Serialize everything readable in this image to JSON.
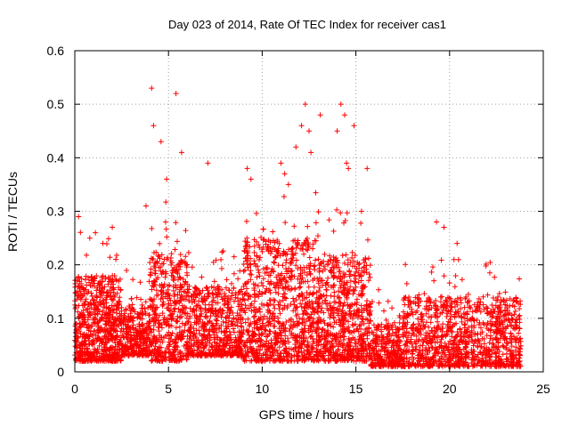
{
  "chart_data": {
    "type": "scatter",
    "title": "Day 023 of 2014, Rate Of TEC Index for receiver cas1",
    "xlabel": "GPS time / hours",
    "ylabel": "ROTI / TECUs",
    "xlim": [
      0,
      25
    ],
    "ylim": [
      0,
      0.6
    ],
    "xticks": [
      "0",
      "5",
      "10",
      "15",
      "20",
      "25"
    ],
    "yticks": [
      "0",
      "0.1",
      "0.2",
      "0.3",
      "0.4",
      "0.5",
      "0.6"
    ],
    "grid": true,
    "marker": "+",
    "series": [
      {
        "name": "cas1",
        "color": "#ff0000",
        "x": [
          0.2,
          0.8,
          1.1,
          1.5,
          2.0,
          3.8,
          4.1,
          4.2,
          4.6,
          4.9,
          5.4,
          5.7,
          7.1,
          9.2,
          9.4,
          11.0,
          11.2,
          11.4,
          11.8,
          12.1,
          12.3,
          12.5,
          12.6,
          13.1,
          14.0,
          14.2,
          14.4,
          14.5,
          14.6,
          14.9,
          15.3,
          15.6,
          19.3,
          19.7,
          20.4
        ],
        "y": [
          0.29,
          0.25,
          0.26,
          0.24,
          0.27,
          0.31,
          0.53,
          0.46,
          0.43,
          0.36,
          0.52,
          0.41,
          0.39,
          0.38,
          0.36,
          0.39,
          0.37,
          0.35,
          0.42,
          0.46,
          0.5,
          0.45,
          0.41,
          0.48,
          0.45,
          0.5,
          0.48,
          0.39,
          0.38,
          0.46,
          0.3,
          0.38,
          0.28,
          0.27,
          0.24
        ]
      }
    ],
    "bands": [
      {
        "x": [
          0,
          2.5
        ],
        "low": 0.02,
        "high": 0.18,
        "n": 700
      },
      {
        "x": [
          2.5,
          4
        ],
        "low": 0.03,
        "high": 0.12,
        "n": 300
      },
      {
        "x": [
          4,
          6
        ],
        "low": 0.02,
        "high": 0.22,
        "n": 450
      },
      {
        "x": [
          6,
          9
        ],
        "low": 0.03,
        "high": 0.16,
        "n": 600
      },
      {
        "x": [
          9,
          13
        ],
        "low": 0.02,
        "high": 0.25,
        "n": 900
      },
      {
        "x": [
          13,
          15.8
        ],
        "low": 0.02,
        "high": 0.22,
        "n": 650
      },
      {
        "x": [
          15.8,
          17.5
        ],
        "low": 0.01,
        "high": 0.09,
        "n": 300
      },
      {
        "x": [
          17.5,
          23.8
        ],
        "low": 0.01,
        "high": 0.14,
        "n": 1100
      }
    ]
  }
}
